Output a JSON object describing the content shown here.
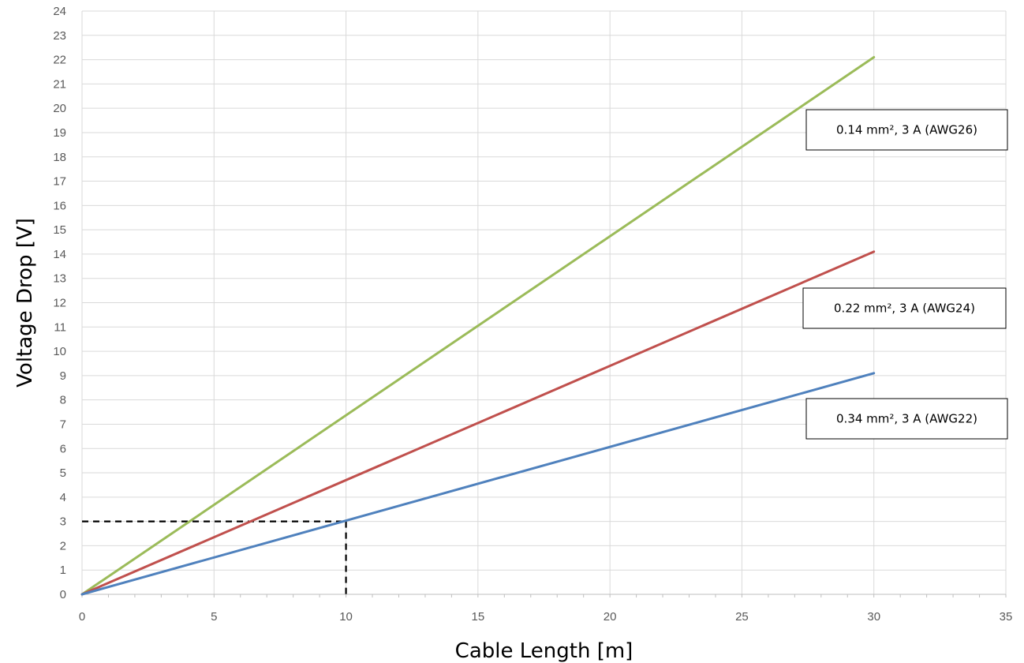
{
  "chart_data": {
    "type": "line",
    "title": "",
    "xlabel": "Cable Length [m]",
    "ylabel": "Voltage Drop [V]",
    "xlim": [
      0,
      35
    ],
    "ylim": [
      0,
      24
    ],
    "x_ticks": [
      0,
      5,
      10,
      15,
      20,
      25,
      30,
      35
    ],
    "y_ticks": [
      0,
      1,
      2,
      3,
      4,
      5,
      6,
      7,
      8,
      9,
      10,
      11,
      12,
      13,
      14,
      15,
      16,
      17,
      18,
      19,
      20,
      21,
      22,
      23,
      24
    ],
    "grid": true,
    "series": [
      {
        "name": "0.14 mm², 3 A (AWG26)",
        "color": "#9BBB59",
        "x": [
          0,
          30
        ],
        "y": [
          0,
          22.1
        ]
      },
      {
        "name": "0.22 mm², 3 A (AWG24)",
        "color": "#C0504D",
        "x": [
          0,
          30
        ],
        "y": [
          0,
          14.1
        ]
      },
      {
        "name": "0.34 mm², 3 A (AWG22)",
        "color": "#4F81BD",
        "x": [
          0,
          30
        ],
        "y": [
          0,
          9.1
        ]
      }
    ],
    "reference_lines": [
      {
        "x": 10,
        "y": 3,
        "style": "dashed",
        "color": "#000000"
      }
    ]
  }
}
